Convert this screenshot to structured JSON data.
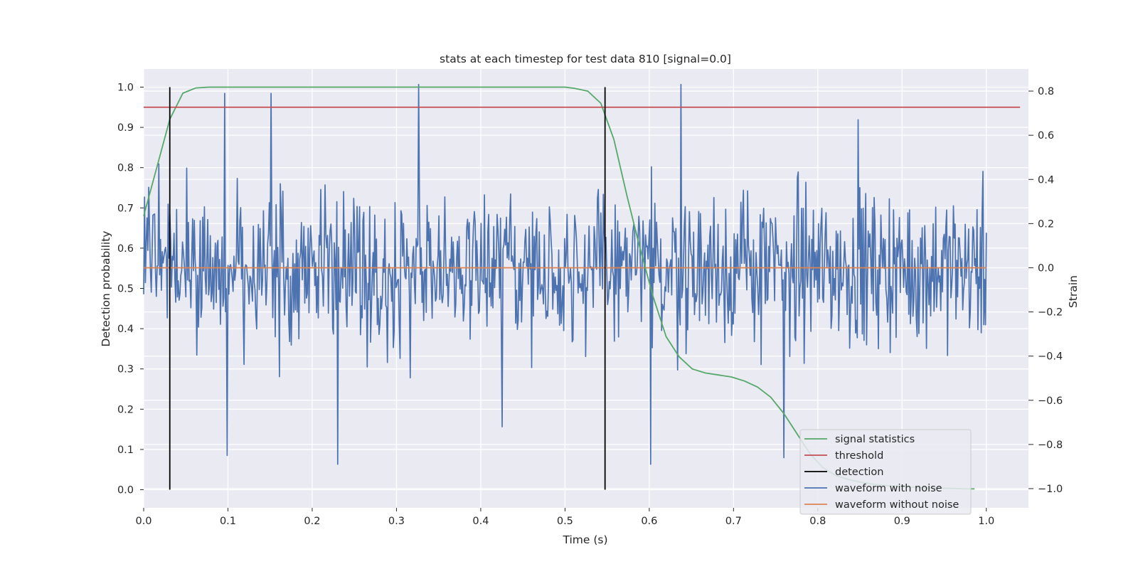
{
  "chart_data": {
    "type": "line",
    "title": "stats at each timestep for test data 810 [signal=0.0]",
    "xlabel": "Time (s)",
    "ylabel": "Detection probability",
    "y2label": "Strain",
    "xlim": [
      0.0,
      1.05
    ],
    "ylim": [
      -0.045,
      1.045
    ],
    "y2lim": [
      -1.087,
      0.9
    ],
    "xticks": [
      "0.0",
      "0.1",
      "0.2",
      "0.3",
      "0.4",
      "0.5",
      "0.6",
      "0.7",
      "0.8",
      "0.9",
      "1.0"
    ],
    "yticks": [
      "0.0",
      "0.1",
      "0.2",
      "0.3",
      "0.4",
      "0.5",
      "0.6",
      "0.7",
      "0.8",
      "0.9",
      "1.0"
    ],
    "y2ticks": [
      "−1.0",
      "−0.8",
      "−0.6",
      "−0.4",
      "−0.2",
      "0.0",
      "0.2",
      "0.4",
      "0.6",
      "0.8"
    ],
    "grid": true,
    "legend_position": "lower-right",
    "legend": [
      "signal statistics",
      "threshold",
      "detection",
      "waveform with noise",
      "waveform without noise"
    ],
    "colors": {
      "signal_statistics": "#55a868",
      "threshold": "#c44e52",
      "detection": "#000000",
      "waveform_with_noise": "#4c72b0",
      "waveform_without_noise": "#dd8452",
      "axes_background": "#eaeaf2"
    },
    "signal_statistics": {
      "x": [
        0.0,
        0.0155,
        0.031,
        0.0465,
        0.062,
        0.0775,
        0.093,
        0.1085,
        0.124,
        0.2,
        0.3,
        0.4,
        0.5,
        0.5115,
        0.527,
        0.5425,
        0.558,
        0.5735,
        0.589,
        0.6045,
        0.62,
        0.6355,
        0.651,
        0.6665,
        0.682,
        0.6975,
        0.713,
        0.7285,
        0.744,
        0.7595,
        0.775,
        0.7905,
        0.806,
        0.8215,
        0.837,
        0.8525,
        0.868,
        0.8835,
        0.899,
        0.9145,
        0.93,
        0.9455,
        0.961,
        0.9765,
        0.986
      ],
      "y": [
        0.68,
        0.8,
        0.92,
        0.985,
        0.998,
        1.0,
        1.0,
        1.0,
        1.0,
        1.0,
        1.0,
        1.0,
        1.0,
        0.997,
        0.99,
        0.96,
        0.87,
        0.73,
        0.6,
        0.48,
        0.38,
        0.33,
        0.3,
        0.29,
        0.285,
        0.28,
        0.27,
        0.255,
        0.23,
        0.19,
        0.14,
        0.09,
        0.055,
        0.035,
        0.025,
        0.018,
        0.013,
        0.01,
        0.008,
        0.006,
        0.005,
        0.004,
        0.003,
        0.002,
        0.002
      ]
    },
    "threshold": {
      "value": 0.95,
      "x_range": [
        0.0,
        1.04
      ]
    },
    "detection": {
      "x": [
        0.031,
        0.5475
      ],
      "y_range": [
        0.0,
        1.0
      ]
    },
    "waveform_with_noise": {
      "x_range": [
        0.0,
        1.0
      ],
      "n_points": 1000,
      "peaks": [
        [
          0.326,
          0.83
        ],
        [
          0.638,
          0.83
        ],
        [
          0.151,
          0.79
        ],
        [
          0.848,
          0.67
        ],
        [
          0.096,
          0.79
        ]
      ],
      "troughs": [
        [
          0.099,
          -0.85
        ],
        [
          0.23,
          -0.89
        ],
        [
          0.602,
          -0.89
        ],
        [
          0.425,
          -0.72
        ],
        [
          0.76,
          -0.86
        ]
      ]
    },
    "waveform_without_noise": {
      "x_range": [
        0.0,
        1.0
      ],
      "value": 0.0
    }
  }
}
